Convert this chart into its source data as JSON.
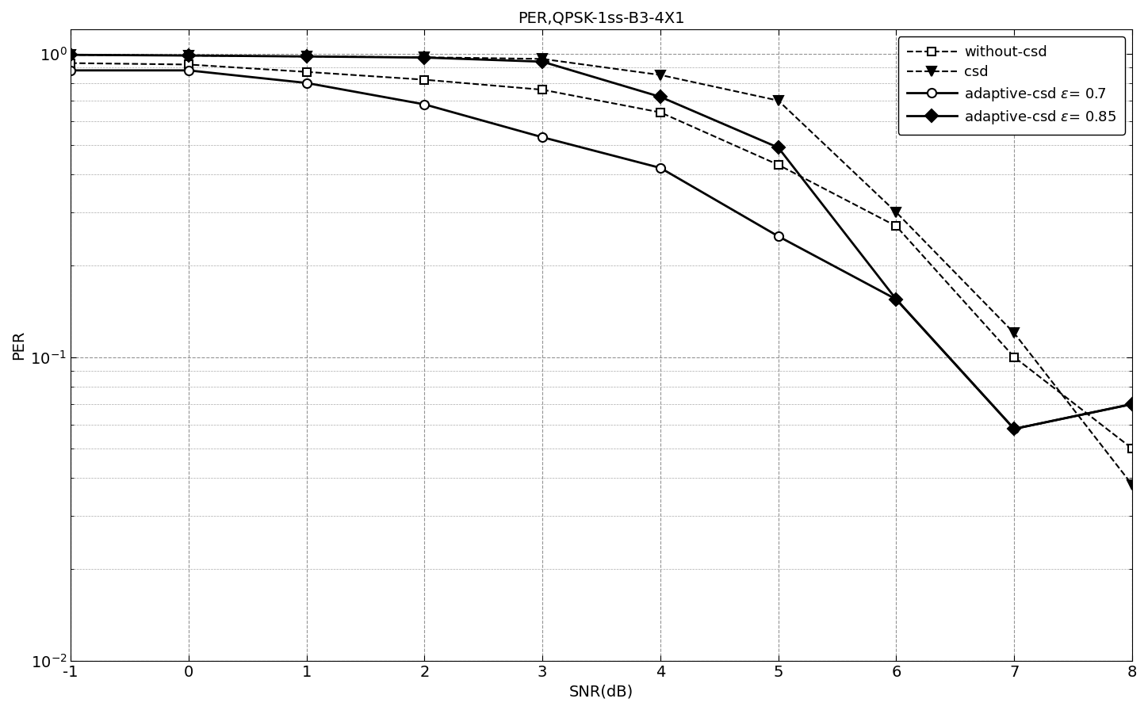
{
  "title": "PER,QPSK-1ss-B3-4X1",
  "xlabel": "SNR(dB)",
  "ylabel": "PER",
  "snr": [
    -1,
    0,
    1,
    2,
    3,
    4,
    5,
    6,
    7,
    8
  ],
  "without_csd": [
    0.93,
    0.92,
    0.87,
    0.82,
    0.76,
    0.64,
    0.43,
    0.27,
    0.1,
    0.05
  ],
  "csd": [
    0.99,
    0.985,
    0.978,
    0.972,
    0.96,
    0.85,
    0.7,
    0.3,
    0.12,
    0.038
  ],
  "adaptive_07": [
    0.88,
    0.88,
    0.8,
    0.68,
    0.53,
    0.42,
    0.25,
    0.155,
    0.058,
    0.07
  ],
  "adaptive_085": [
    0.99,
    0.985,
    0.978,
    0.97,
    0.94,
    0.72,
    0.49,
    0.155,
    0.058,
    0.07
  ],
  "bg_color": "#ffffff",
  "grid_color": "#888888",
  "ylim": [
    0.01,
    1.2
  ],
  "xlim": [
    -1,
    8
  ]
}
